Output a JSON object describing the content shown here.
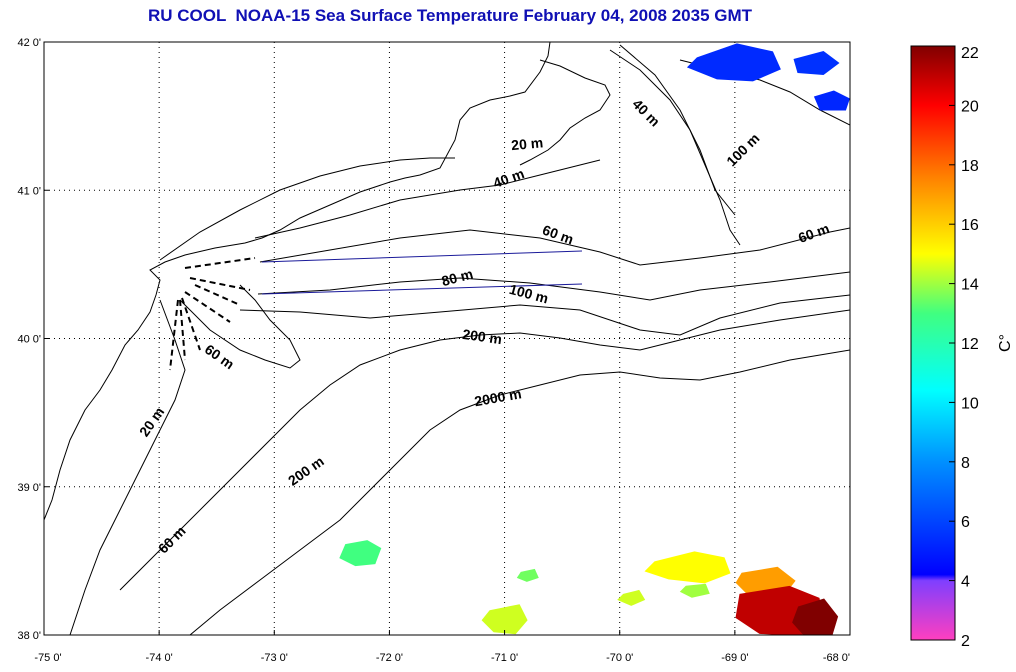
{
  "title": "RU COOL  NOAA-15 Sea Surface Temperature February 04, 2008 2035 GMT",
  "map": {
    "lon_range": [
      -75,
      -68
    ],
    "lat_range": [
      38,
      42
    ],
    "lon_ticks": [
      {
        "value": -75,
        "label": "-75 0'"
      },
      {
        "value": -74,
        "label": "-74 0'"
      },
      {
        "value": -73,
        "label": "-73 0'"
      },
      {
        "value": -72,
        "label": "-72 0'"
      },
      {
        "value": -71,
        "label": "-71 0'"
      },
      {
        "value": -70,
        "label": "-70 0'"
      },
      {
        "value": -69,
        "label": "-69 0'"
      },
      {
        "value": -68,
        "label": "-68 0'"
      }
    ],
    "lat_ticks": [
      {
        "value": 38,
        "label": "38 0'"
      },
      {
        "value": 39,
        "label": "39 0'"
      },
      {
        "value": 40,
        "label": "40 0'"
      },
      {
        "value": 41,
        "label": "41 0'"
      },
      {
        "value": 42,
        "label": "42 0'"
      }
    ],
    "grid": "dotted",
    "contour_labels": [
      {
        "text": "20 m",
        "lon": -70.8,
        "lat": 41.28,
        "angle": -5
      },
      {
        "text": "40 m",
        "lon": -70.95,
        "lat": 41.05,
        "angle": -20
      },
      {
        "text": "40 m",
        "lon": -69.8,
        "lat": 41.5,
        "angle": 45
      },
      {
        "text": "100 m",
        "lon": -68.9,
        "lat": 41.25,
        "angle": -45
      },
      {
        "text": "60 m",
        "lon": -70.55,
        "lat": 40.67,
        "angle": 20
      },
      {
        "text": "60 m",
        "lon": -68.3,
        "lat": 40.68,
        "angle": -20
      },
      {
        "text": "80 m",
        "lon": -71.4,
        "lat": 40.38,
        "angle": -15
      },
      {
        "text": "100 m",
        "lon": -70.8,
        "lat": 40.27,
        "angle": 15
      },
      {
        "text": "200 m",
        "lon": -71.2,
        "lat": 39.98,
        "angle": 8
      },
      {
        "text": "2000 m",
        "lon": -71.05,
        "lat": 39.57,
        "angle": -10
      },
      {
        "text": "60 m",
        "lon": -73.5,
        "lat": 39.85,
        "angle": 35
      },
      {
        "text": "20 m",
        "lon": -74.03,
        "lat": 39.42,
        "angle": -55
      },
      {
        "text": "200 m",
        "lon": -72.7,
        "lat": 39.08,
        "angle": -35
      },
      {
        "text": "60 m",
        "lon": -73.86,
        "lat": 38.62,
        "angle": -45
      }
    ]
  },
  "sst": {
    "patches": [
      {
        "lon": -72.25,
        "lat": 38.55,
        "temp": 13
      },
      {
        "lon": -71.0,
        "lat": 38.1,
        "temp": 14.5
      },
      {
        "lon": -70.8,
        "lat": 38.4,
        "temp": 13.5
      },
      {
        "lon": -69.4,
        "lat": 38.45,
        "temp": 15
      },
      {
        "lon": -68.75,
        "lat": 38.35,
        "temp": 17
      },
      {
        "lon": -68.6,
        "lat": 38.15,
        "temp": 21
      },
      {
        "lon": -68.3,
        "lat": 38.1,
        "temp": 22
      },
      {
        "lon": -69.35,
        "lat": 38.3,
        "temp": 14
      },
      {
        "lon": -69.9,
        "lat": 38.25,
        "temp": 14.5
      },
      {
        "lon": -69.0,
        "lat": 41.85,
        "temp": 5.3
      },
      {
        "lon": -68.3,
        "lat": 41.85,
        "temp": 5.5
      },
      {
        "lon": -68.15,
        "lat": 41.6,
        "temp": 5.2
      }
    ]
  },
  "colorbar": {
    "min": 2,
    "max": 22,
    "ticks": [
      {
        "value": 2,
        "label": "2"
      },
      {
        "value": 4,
        "label": "4"
      },
      {
        "value": 6,
        "label": "6"
      },
      {
        "value": 8,
        "label": "8"
      },
      {
        "value": 10,
        "label": "10"
      },
      {
        "value": 12,
        "label": "12"
      },
      {
        "value": 14,
        "label": "14"
      },
      {
        "value": 16,
        "label": "16"
      },
      {
        "value": 18,
        "label": "18"
      },
      {
        "value": 20,
        "label": "20"
      },
      {
        "value": 22,
        "label": "22"
      }
    ],
    "unit": "C°"
  }
}
